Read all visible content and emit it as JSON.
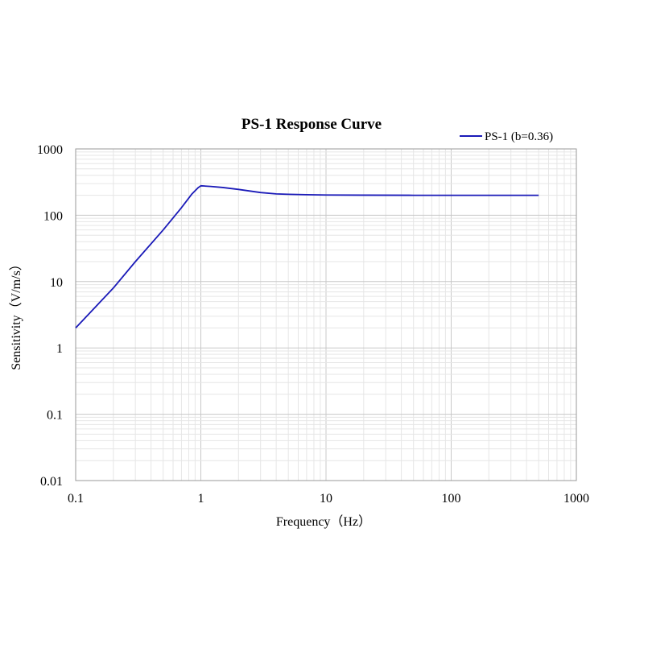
{
  "chart_data": {
    "type": "line",
    "title": "PS-1 Response Curve",
    "xlabel": "Frequency（Hz）",
    "ylabel": "Sensitivity（V/m/s）",
    "xscale": "log",
    "yscale": "log",
    "xlim": [
      0.1,
      1000
    ],
    "ylim": [
      0.01,
      1000
    ],
    "xticks": [
      "0.1",
      "1",
      "10",
      "100",
      "1000"
    ],
    "yticks": [
      "0.01",
      "0.1",
      "1",
      "10",
      "100",
      "1000"
    ],
    "grid": true,
    "legend_position": "top-right",
    "series": [
      {
        "name": "PS-1 (b=0.36)",
        "color": "#1a1ab8",
        "x": [
          0.1,
          0.2,
          0.3,
          0.5,
          0.7,
          0.85,
          0.95,
          1.0,
          1.2,
          1.5,
          2,
          3,
          4,
          5,
          7,
          10,
          20,
          50,
          100,
          200,
          500
        ],
        "y": [
          2,
          8,
          20,
          60,
          130,
          210,
          260,
          278,
          272,
          262,
          245,
          220,
          210,
          207,
          204,
          202,
          201,
          200,
          200,
          200,
          200
        ]
      }
    ]
  }
}
